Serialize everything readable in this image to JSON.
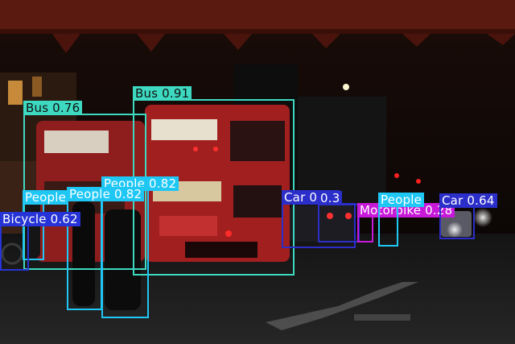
{
  "scene": {
    "description_icon": "night-street-photo",
    "colors": {
      "bus": "#3dd9c1",
      "people": "#1fc7f5",
      "car": "#2b2ec9",
      "bicycle": "#2633d6",
      "motorbike": "#c719d8"
    }
  },
  "detections": [
    {
      "label": "Bus 0.76",
      "cls": "bus"
    },
    {
      "label": "Bus 0.91",
      "cls": "bus"
    },
    {
      "label": "People 0.82",
      "cls": "people"
    },
    {
      "label": "People",
      "cls": "people"
    },
    {
      "label": "People 0.82",
      "cls": "people"
    },
    {
      "label": "Bicycle 0.62",
      "cls": "bicycle"
    },
    {
      "label": "Car 0.69",
      "cls": "car"
    },
    {
      "label": "0.3",
      "cls": "car"
    },
    {
      "label": "Motorbike 0.28",
      "cls": "motorbike"
    },
    {
      "label": "People",
      "cls": "people"
    },
    {
      "label": "Car 0.64",
      "cls": "car"
    }
  ]
}
